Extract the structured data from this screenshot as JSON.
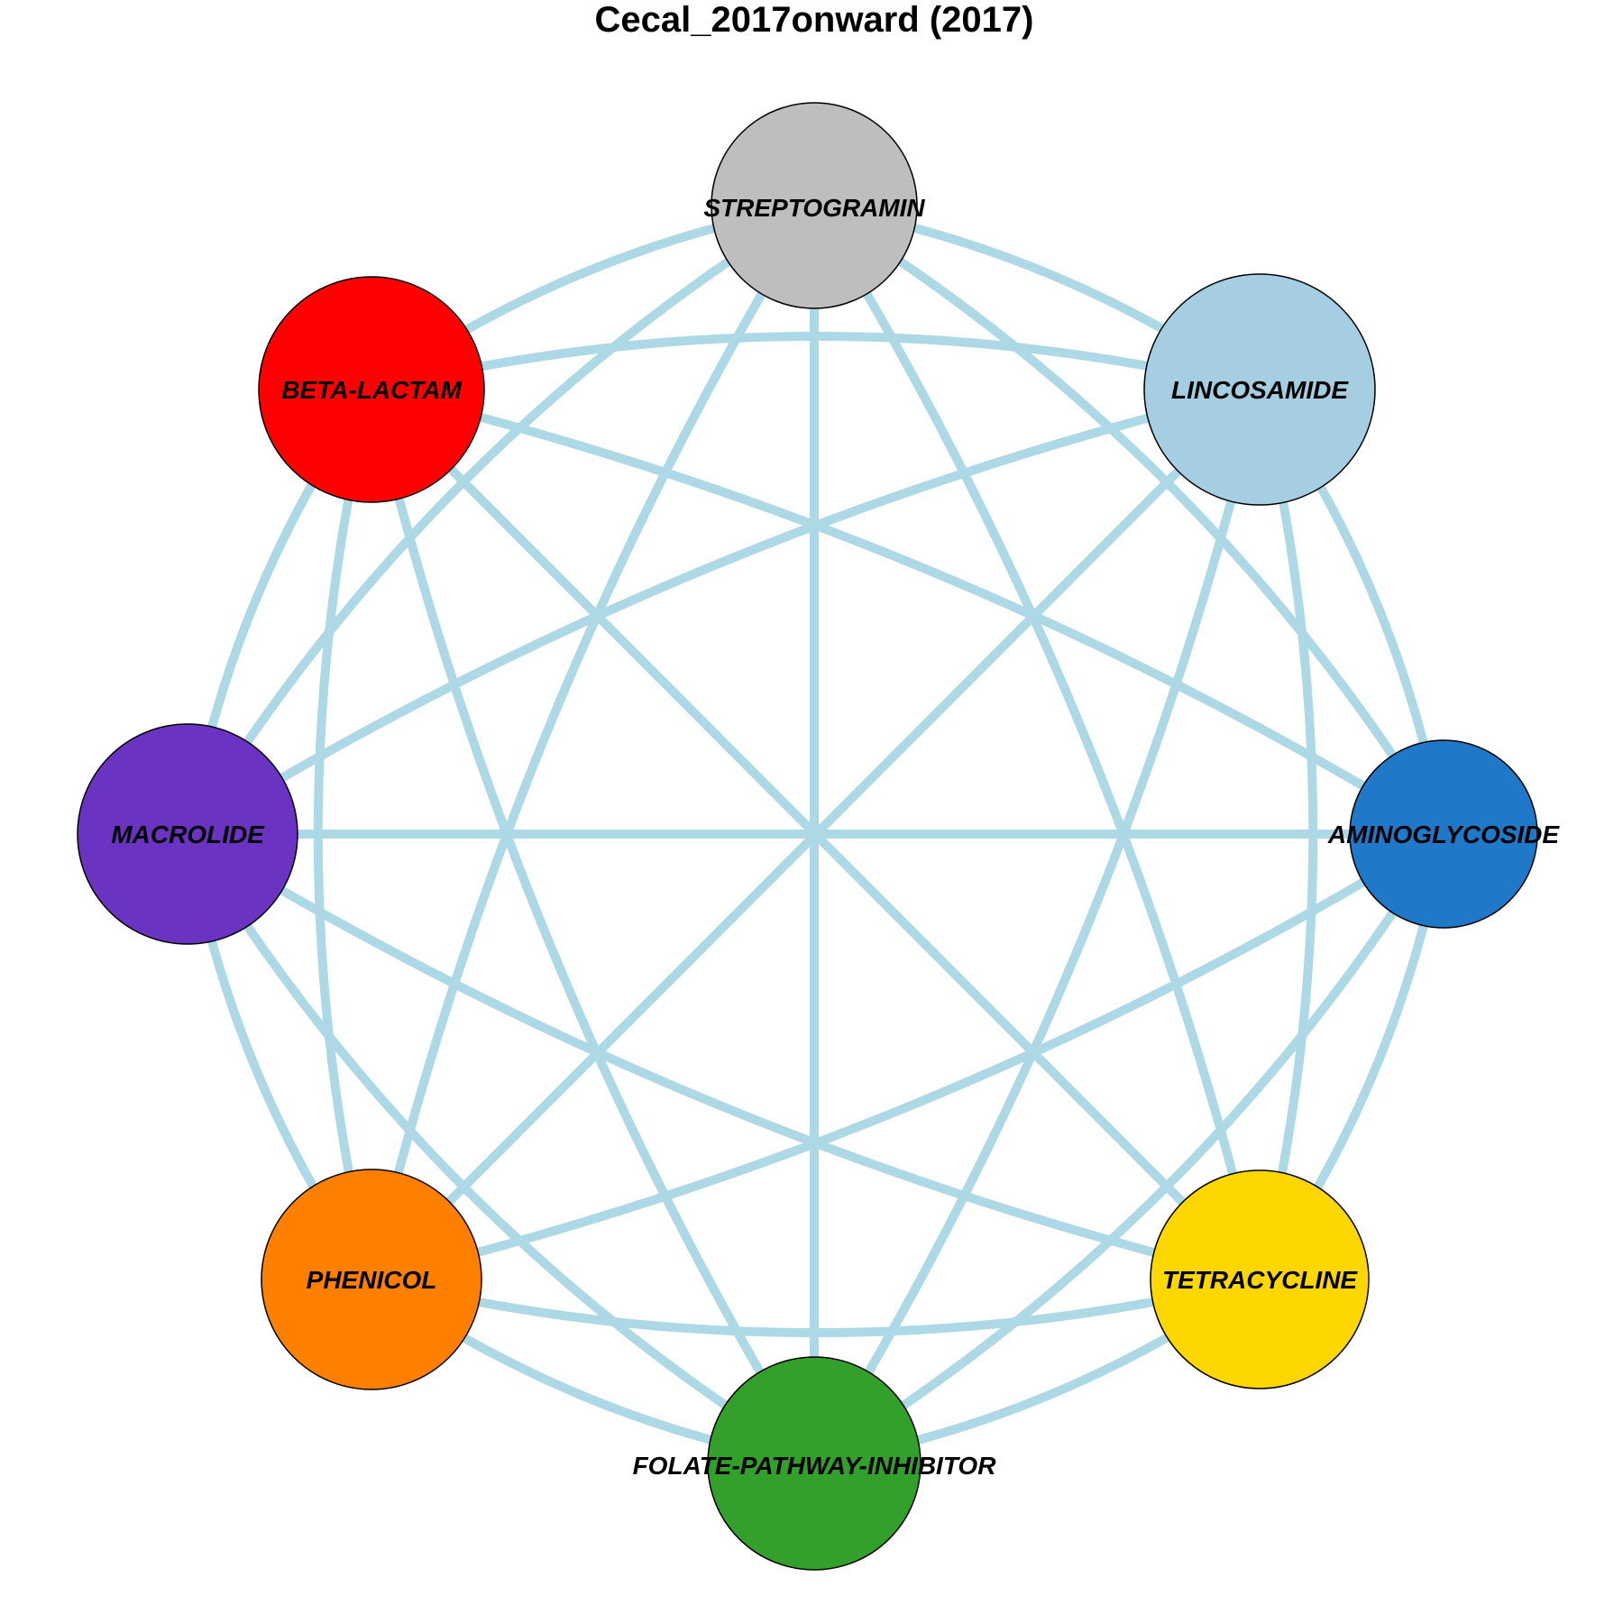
{
  "title": "Cecal_2017onward (2017)",
  "edge_color": "#add8e6",
  "nodes": [
    {
      "id": "streptogramin",
      "label": "STREPTOGRAMIN",
      "color": "#bebebe"
    },
    {
      "id": "lincosamide",
      "label": "LINCOSAMIDE",
      "color": "#a6cee3"
    },
    {
      "id": "aminoglycoside",
      "label": "AMINOGLYCOSIDE",
      "color": "#1f78c8"
    },
    {
      "id": "tetracycline",
      "label": "TETRACYCLINE",
      "color": "#ffd700"
    },
    {
      "id": "folate-pathway-inhibitor",
      "label": "FOLATE-PATHWAY-INHIBITOR",
      "color": "#33a02c"
    },
    {
      "id": "phenicol",
      "label": "PHENICOL",
      "color": "#ff7f00"
    },
    {
      "id": "macrolide",
      "label": "MACROLIDE",
      "color": "#6a33c2"
    },
    {
      "id": "beta-lactam",
      "label": "BETA-LACTAM",
      "color": "#ff0000"
    }
  ],
  "edges": [
    [
      "streptogramin",
      "lincosamide"
    ],
    [
      "streptogramin",
      "aminoglycoside"
    ],
    [
      "streptogramin",
      "tetracycline"
    ],
    [
      "streptogramin",
      "folate-pathway-inhibitor"
    ],
    [
      "streptogramin",
      "phenicol"
    ],
    [
      "streptogramin",
      "macrolide"
    ],
    [
      "streptogramin",
      "beta-lactam"
    ],
    [
      "lincosamide",
      "aminoglycoside"
    ],
    [
      "lincosamide",
      "tetracycline"
    ],
    [
      "lincosamide",
      "folate-pathway-inhibitor"
    ],
    [
      "lincosamide",
      "phenicol"
    ],
    [
      "lincosamide",
      "macrolide"
    ],
    [
      "lincosamide",
      "beta-lactam"
    ],
    [
      "aminoglycoside",
      "tetracycline"
    ],
    [
      "aminoglycoside",
      "folate-pathway-inhibitor"
    ],
    [
      "aminoglycoside",
      "phenicol"
    ],
    [
      "aminoglycoside",
      "macrolide"
    ],
    [
      "aminoglycoside",
      "beta-lactam"
    ],
    [
      "tetracycline",
      "folate-pathway-inhibitor"
    ],
    [
      "tetracycline",
      "phenicol"
    ],
    [
      "tetracycline",
      "macrolide"
    ],
    [
      "tetracycline",
      "beta-lactam"
    ],
    [
      "folate-pathway-inhibitor",
      "phenicol"
    ],
    [
      "folate-pathway-inhibitor",
      "macrolide"
    ],
    [
      "folate-pathway-inhibitor",
      "beta-lactam"
    ],
    [
      "phenicol",
      "macrolide"
    ],
    [
      "phenicol",
      "beta-lactam"
    ],
    [
      "macrolide",
      "beta-lactam"
    ]
  ]
}
